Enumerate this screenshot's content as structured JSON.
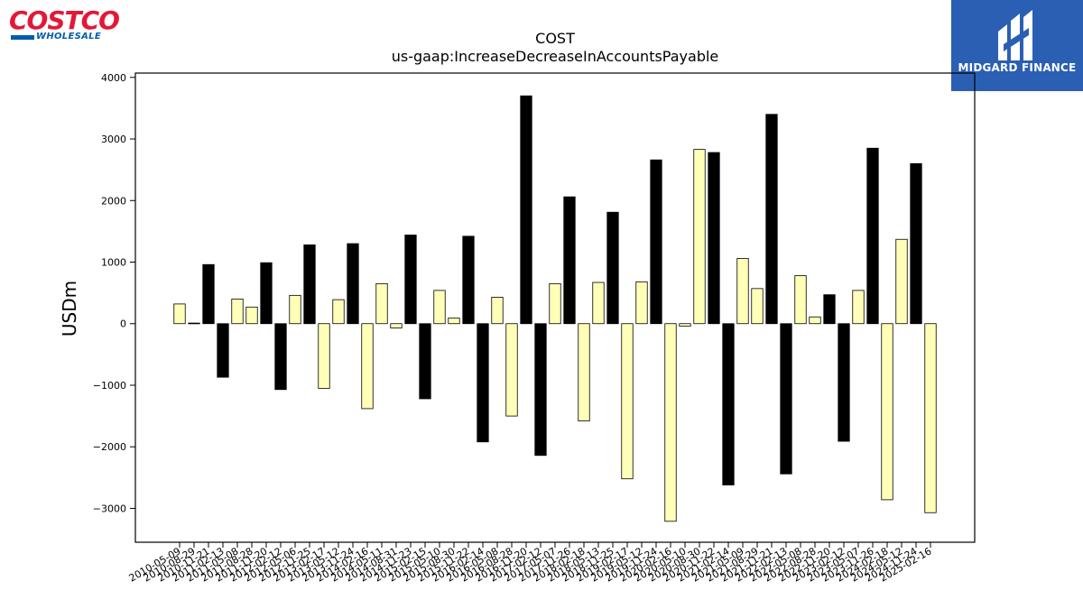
{
  "brand": {
    "costco_word": "COSTCO",
    "costco_sub": "WHOLESALE",
    "costco_red": "#e31837",
    "costco_blue": "#005daa",
    "midgard_name": "MIDGARD FINANCE",
    "midgard_bg": "#2b5fb4"
  },
  "chart_data": {
    "type": "bar",
    "title": "COST",
    "subtitle": "us-gaap:IncreaseDecreaseInAccountsPayable",
    "xlabel": "",
    "ylabel": "USDm",
    "ylim": [
      -3550,
      4070
    ],
    "yticks": [
      4000,
      3000,
      2000,
      1000,
      0,
      -1000,
      -2000,
      -3000
    ],
    "ytick_labels": [
      "4000",
      "3000",
      "2000",
      "1000",
      "0",
      "−1000",
      "−2000",
      "−3000"
    ],
    "grid": false,
    "colors": {
      "quarterly": "#ffffb8",
      "annual": "#000000",
      "edge": "#000000"
    },
    "categories": [
      "2010-05-09",
      "2010-08-29",
      "2010-11-21",
      "2011-02-13",
      "2011-05-08",
      "2011-08-28",
      "2011-11-20",
      "2012-02-12",
      "2012-05-06",
      "2012-11-25",
      "2013-02-17",
      "2013-05-12",
      "2013-11-24",
      "2014-02-16",
      "2014-05-11",
      "2014-08-31",
      "2014-11-23",
      "2015-02-15",
      "2015-05-10",
      "2015-08-30",
      "2015-11-22",
      "2016-02-14",
      "2016-05-08",
      "2016-08-28",
      "2016-11-20",
      "2017-02-12",
      "2017-05-07",
      "2017-11-26",
      "2018-02-18",
      "2018-05-13",
      "2018-11-25",
      "2019-02-17",
      "2019-05-12",
      "2019-11-24",
      "2020-02-16",
      "2020-05-10",
      "2020-08-30",
      "2020-11-22",
      "2021-02-14",
      "2021-05-09",
      "2021-08-29",
      "2021-11-21",
      "2022-02-13",
      "2022-05-08",
      "2022-08-28",
      "2022-11-20",
      "2023-02-12",
      "2023-05-07",
      "2023-11-26",
      "2024-02-18",
      "2024-05-12",
      "2024-11-24",
      "2025-02-16"
    ],
    "values": [
      320,
      10,
      960,
      -870,
      400,
      270,
      990,
      -1070,
      460,
      1280,
      -1050,
      390,
      1300,
      -1380,
      650,
      -70,
      1440,
      -1220,
      540,
      90,
      1420,
      -1920,
      430,
      -1500,
      3700,
      -2140,
      650,
      2060,
      -1580,
      670,
      1810,
      -2520,
      680,
      2660,
      -3210,
      -40,
      2830,
      2780,
      -2620,
      1060,
      570,
      3400,
      -2440,
      780,
      110,
      470,
      -1910,
      540,
      2850,
      -2860,
      1370,
      2600,
      -3070
    ],
    "kinds": [
      "q",
      "a",
      "a",
      "a",
      "q",
      "q",
      "a",
      "a",
      "q",
      "a",
      "q",
      "q",
      "a",
      "q",
      "q",
      "q",
      "a",
      "a",
      "q",
      "q",
      "a",
      "a",
      "q",
      "q",
      "a",
      "a",
      "q",
      "a",
      "q",
      "q",
      "a",
      "q",
      "q",
      "a",
      "q",
      "q",
      "q",
      "a",
      "a",
      "q",
      "q",
      "a",
      "a",
      "q",
      "q",
      "a",
      "a",
      "q",
      "a",
      "q",
      "q",
      "a",
      "q"
    ]
  }
}
